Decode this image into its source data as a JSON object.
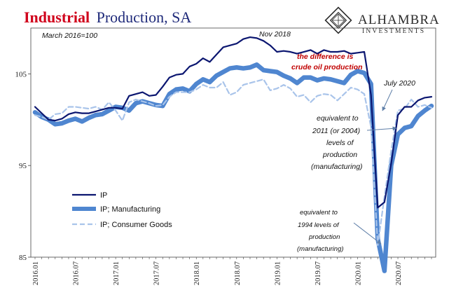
{
  "header": {
    "title_part1": "Industrial",
    "title_part2": "Production, SA",
    "base_note": "March 2016=100",
    "logo_name": "ALHAMBRA",
    "logo_sub": "INVESTMENTS"
  },
  "annotations": {
    "nov2018": "Nov 2018",
    "difference_line1": "the difference is",
    "difference_line2": "crude oil production",
    "july2020": "July 2020",
    "equiv2011": [
      "equivalent to",
      "2011 (or 2004)",
      "levels of",
      "production",
      "(manufacturing)"
    ],
    "equiv1994": [
      "equivalent to",
      "1994 levels of",
      "production",
      "(manufacturing)"
    ]
  },
  "colors": {
    "ip": "#0b1670",
    "manufacturing": "#4f86d0",
    "consumer": "#a9c4ea",
    "title_red": "#d0021b",
    "title_blue": "#1f2a7a"
  },
  "chart_data": {
    "type": "line",
    "x": [
      "2016.01",
      "2016.02",
      "2016.03",
      "2016.04",
      "2016.05",
      "2016.06",
      "2016.07",
      "2016.08",
      "2016.09",
      "2016.10",
      "2016.11",
      "2016.12",
      "2017.01",
      "2017.02",
      "2017.03",
      "2017.04",
      "2017.05",
      "2017.06",
      "2017.07",
      "2017.08",
      "2017.09",
      "2017.10",
      "2017.11",
      "2017.12",
      "2018.01",
      "2018.02",
      "2018.03",
      "2018.04",
      "2018.05",
      "2018.06",
      "2018.07",
      "2018.08",
      "2018.09",
      "2018.10",
      "2018.11",
      "2018.12",
      "2019.01",
      "2019.02",
      "2019.03",
      "2019.04",
      "2019.05",
      "2019.06",
      "2019.07",
      "2019.08",
      "2019.09",
      "2019.10",
      "2019.11",
      "2019.12",
      "2020.01",
      "2020.02",
      "2020.03",
      "2020.04",
      "2020.05",
      "2020.06",
      "2020.07",
      "2020.08",
      "2020.09",
      "2020.10",
      "2020.11",
      "2020.12"
    ],
    "xticks": [
      "2016.01",
      "2016.07",
      "2017.01",
      "2017.07",
      "2018.01",
      "2018.07",
      "2019.01",
      "2019.07",
      "2020.01",
      "2020.07"
    ],
    "ylim": [
      85,
      110
    ],
    "yticks": [
      85,
      95,
      105
    ],
    "series": [
      {
        "name": "IP",
        "values": [
          101.4,
          100.7,
          100.0,
          99.9,
          100.1,
          100.6,
          100.8,
          100.7,
          100.7,
          100.9,
          101.1,
          101.3,
          101.3,
          101.2,
          102.6,
          102.8,
          103.0,
          102.6,
          102.7,
          103.6,
          104.6,
          104.9,
          105.0,
          105.8,
          106.1,
          106.7,
          106.3,
          107.1,
          107.9,
          108.1,
          108.3,
          108.8,
          109.0,
          108.9,
          108.6,
          108.1,
          107.4,
          107.5,
          107.4,
          107.2,
          107.4,
          107.6,
          107.2,
          107.6,
          107.4,
          107.4,
          107.5,
          107.2,
          107.3,
          107.4,
          102.7,
          90.4,
          91.0,
          95.2,
          100.5,
          101.4,
          101.4,
          102.1,
          102.4,
          102.5
        ]
      },
      {
        "name": "IP; Manufacturing",
        "values": [
          100.8,
          100.3,
          100.0,
          99.5,
          99.6,
          99.9,
          100.1,
          99.8,
          100.2,
          100.5,
          100.6,
          101.0,
          101.4,
          101.3,
          101.0,
          101.8,
          102.0,
          101.8,
          101.6,
          101.5,
          102.8,
          103.3,
          103.4,
          103.1,
          103.9,
          104.4,
          104.1,
          104.8,
          105.2,
          105.6,
          105.7,
          105.6,
          105.7,
          106.0,
          105.4,
          105.3,
          105.2,
          104.8,
          104.5,
          104.0,
          104.6,
          104.6,
          104.3,
          104.5,
          104.4,
          104.2,
          104.0,
          104.9,
          105.3,
          105.1,
          103.9,
          87.0,
          83.5,
          95.0,
          98.4,
          99.1,
          99.3,
          100.4,
          101.0,
          101.5
        ]
      },
      {
        "name": "IP; Consumer Goods",
        "values": [
          100.5,
          100.3,
          100.0,
          100.6,
          100.7,
          101.4,
          101.4,
          101.3,
          101.2,
          101.4,
          101.1,
          101.9,
          101.0,
          99.9,
          101.9,
          102.2,
          102.0,
          101.8,
          101.5,
          101.6,
          102.5,
          103.0,
          103.0,
          103.0,
          103.3,
          103.8,
          103.5,
          103.5,
          104.1,
          102.7,
          103.0,
          103.8,
          104.0,
          104.2,
          104.4,
          103.2,
          103.4,
          103.8,
          103.4,
          102.5,
          102.7,
          101.9,
          102.6,
          102.8,
          102.7,
          102.1,
          102.8,
          103.5,
          103.3,
          102.8,
          99.2,
          86.3,
          91.6,
          96.6,
          101.0,
          101.2,
          102.2,
          101.4,
          101.6,
          101.3
        ]
      }
    ]
  }
}
